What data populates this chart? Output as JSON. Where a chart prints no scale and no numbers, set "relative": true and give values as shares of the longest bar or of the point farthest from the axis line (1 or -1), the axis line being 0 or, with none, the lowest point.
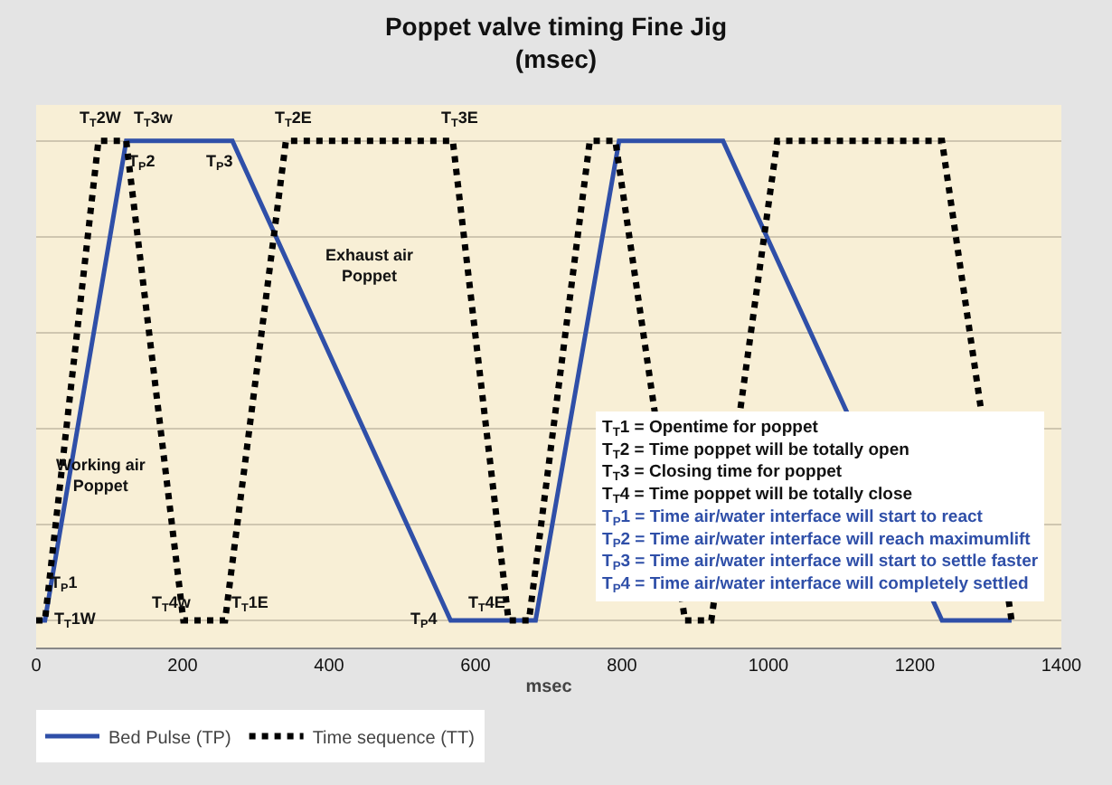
{
  "chart_data": {
    "type": "line",
    "title": "Poppet valve timing Fine Jig",
    "subtitle": "(msec)",
    "xlabel": "msec",
    "relative": true,
    "xlim": [
      0,
      1400
    ],
    "xticks": [
      0,
      200,
      400,
      600,
      800,
      1000,
      1200,
      1400
    ],
    "grid": "y",
    "legend": "bottom left",
    "marker": "none",
    "series": [
      {
        "name": "Bed Pulse (TP)",
        "color": "#2f4fa8",
        "line_style": "solid",
        "x": [
          0,
          12,
          123,
          268,
          566,
          682,
          796,
          938,
          1237,
          1332
        ],
        "values": [
          0,
          0,
          1,
          1,
          0,
          0,
          1,
          1,
          0,
          0
        ]
      },
      {
        "name": "Time sequence (TT)",
        "color": "#000000",
        "line_style": "dotted",
        "x": [
          0,
          12,
          85,
          123,
          201,
          258,
          341,
          569,
          645,
          673,
          756,
          791,
          886,
          922,
          1012,
          1237,
          1332
        ],
        "values": [
          0,
          0,
          1,
          1,
          0,
          0,
          1,
          1,
          0,
          0,
          1,
          1,
          0,
          0,
          1,
          1,
          0
        ]
      }
    ],
    "annotations": [
      "T$_{T}$2W",
      "T$_{T}$3w",
      "T$_{P}$2",
      "T$_{P}$3",
      "T$_{T}$2E",
      "T$_{T}$3E",
      "Exhaust air Poppet",
      "Working air Poppet",
      "T$_{P}$1",
      "T$_{T}$1W",
      "T$_{T}$4w",
      "T$_{T}$1E",
      "T$_{P}$4",
      "T$_{T}$4E",
      "T$_{T}$1 = Opentime for poppet",
      "T$_{T}$2 = Time poppet will be totally open",
      "T$_{T}$3 = Closing time for poppet",
      "T$_{T}$4 = Time poppet will be totally close",
      "T$_{P}$1 = Time air/water interface will start to react",
      "T$_{P}$2 = Time air/water interface will reach maximumlift",
      "T$_{P}$3 = Time air/water interface will start to settle faster",
      "T$_{P}$4 = Time air/water interface will completely settled"
    ]
  }
}
